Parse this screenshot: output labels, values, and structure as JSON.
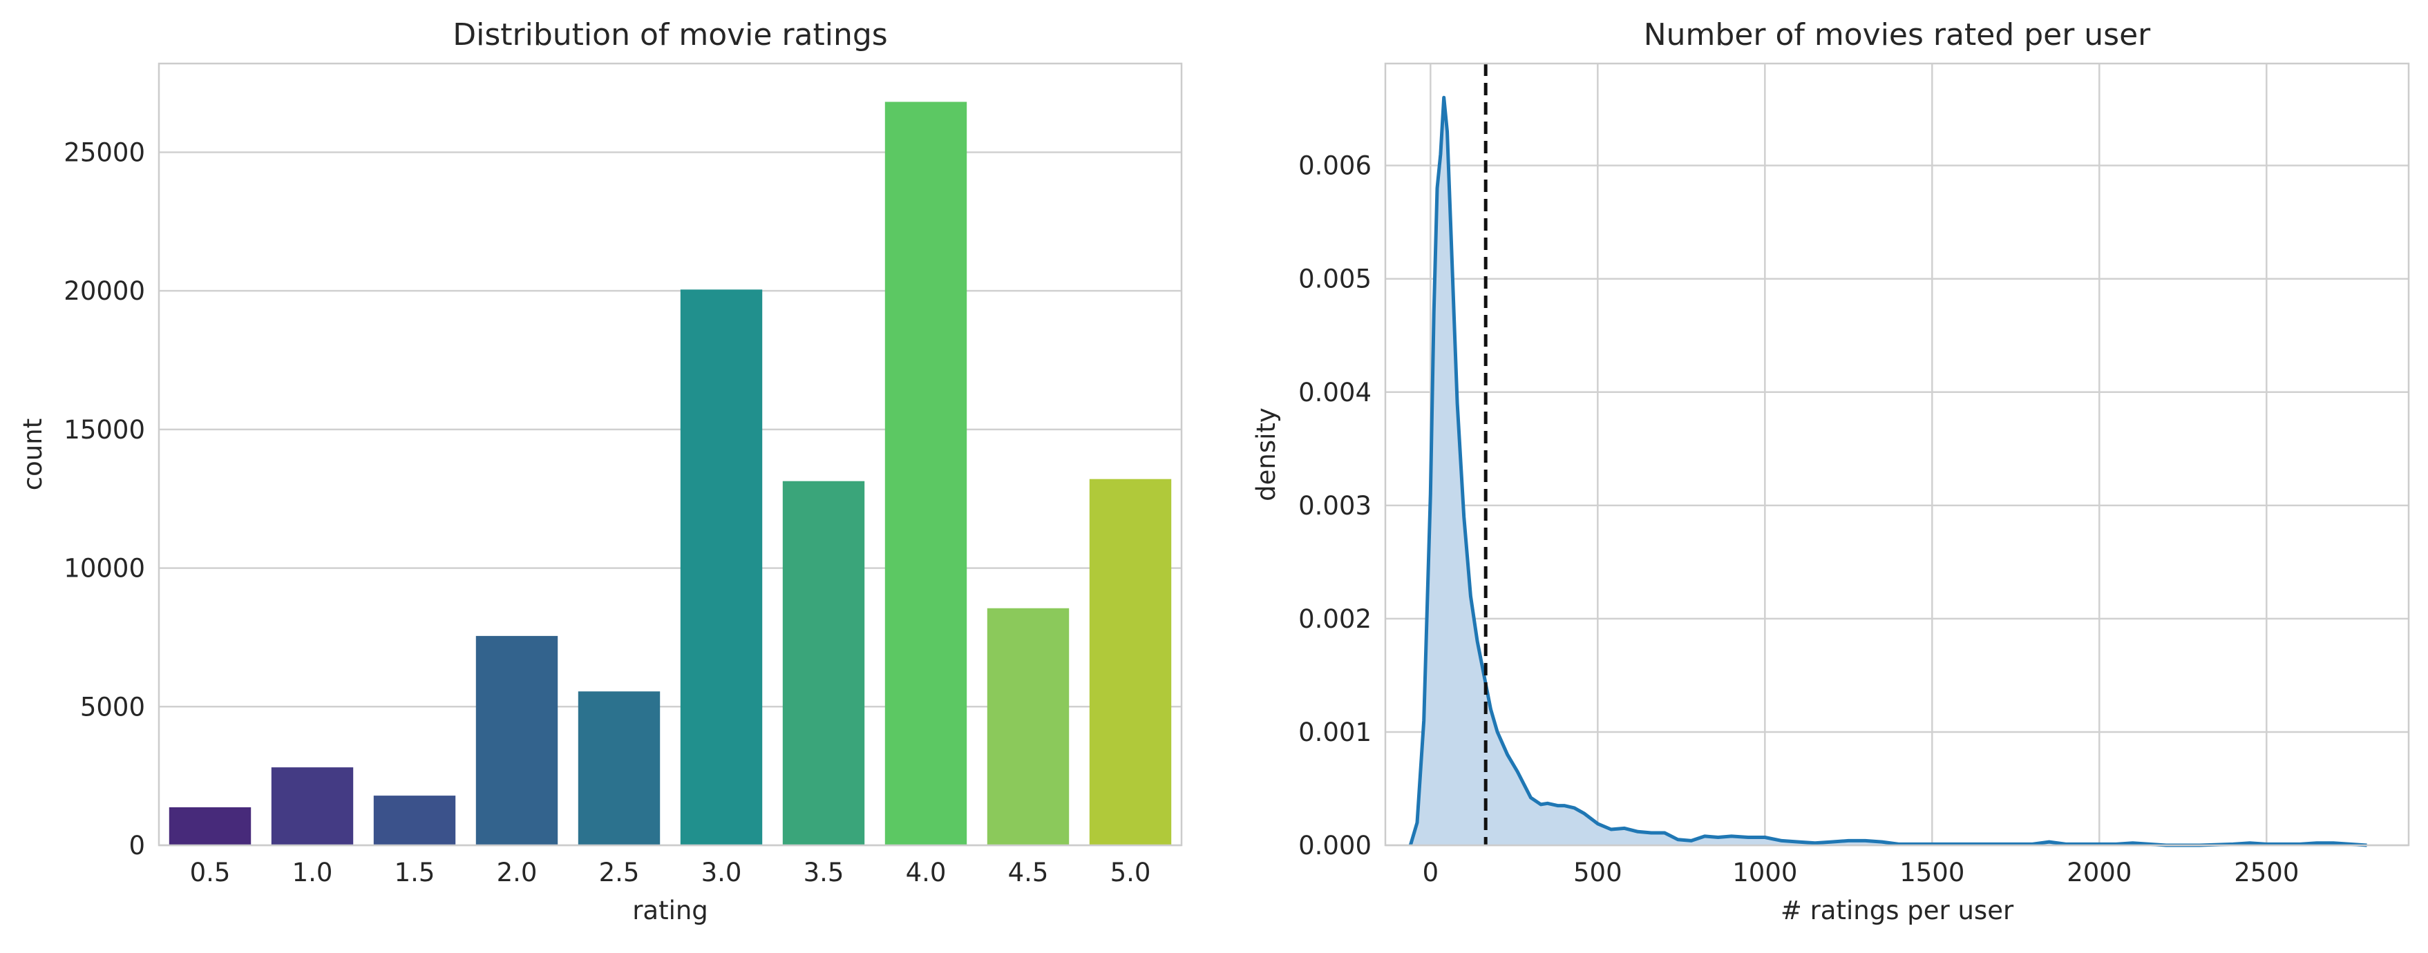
{
  "chart_data": [
    {
      "type": "bar",
      "title": "Distribution of movie ratings",
      "xlabel": "rating",
      "ylabel": "count",
      "categories": [
        "0.5",
        "1.0",
        "1.5",
        "2.0",
        "2.5",
        "3.0",
        "3.5",
        "4.0",
        "4.5",
        "5.0"
      ],
      "values": [
        1370,
        2811,
        1791,
        7551,
        5550,
        20047,
        13136,
        26818,
        8551,
        13211
      ],
      "colors": [
        "#472a7a",
        "#443b84",
        "#3b528b",
        "#33638d",
        "#2c728e",
        "#21908d",
        "#3aa57a",
        "#5cc863",
        "#8bc95b",
        "#b0c93a"
      ],
      "ylim": [
        0,
        28200
      ],
      "yticks": [
        0,
        5000,
        10000,
        15000,
        20000,
        25000
      ],
      "grid": "horizontal"
    },
    {
      "type": "area",
      "title": "Number of movies rated per user",
      "xlabel": "# ratings per user",
      "ylabel": "density",
      "xlim": [
        -135,
        2925
      ],
      "ylim": [
        0,
        0.0069
      ],
      "xticks": [
        0,
        500,
        1000,
        1500,
        2000,
        2500
      ],
      "yticks": [
        "0.000",
        "0.001",
        "0.002",
        "0.003",
        "0.004",
        "0.005",
        "0.006"
      ],
      "reference_line_x": 165,
      "line_color": "#1f77b4",
      "fill_color": "#c5d9ec",
      "grid": "both",
      "series": [
        {
          "x": [
            -60,
            -40,
            -20,
            0,
            10,
            20,
            30,
            40,
            50,
            60,
            70,
            80,
            100,
            120,
            140,
            160,
            180,
            200,
            230,
            260,
            300,
            330,
            350,
            380,
            400,
            430,
            460,
            500,
            540,
            580,
            620,
            660,
            700,
            740,
            780,
            820,
            860,
            900,
            950,
            1000,
            1050,
            1100,
            1150,
            1200,
            1250,
            1300,
            1350,
            1400,
            1450,
            1500,
            1600,
            1700,
            1800,
            1850,
            1900,
            1950,
            2000,
            2050,
            2100,
            2150,
            2200,
            2300,
            2400,
            2450,
            2500,
            2550,
            2600,
            2650,
            2700,
            2750,
            2800
          ],
          "y": [
            0,
            0.0002,
            0.0011,
            0.0031,
            0.0047,
            0.0058,
            0.0061,
            0.0066,
            0.0063,
            0.0055,
            0.0047,
            0.0039,
            0.0029,
            0.0022,
            0.0018,
            0.0015,
            0.0012,
            0.001,
            0.0008,
            0.00065,
            0.00042,
            0.00036,
            0.00037,
            0.00035,
            0.00035,
            0.00033,
            0.00028,
            0.00019,
            0.00014,
            0.00015,
            0.00012,
            0.00011,
            0.00011,
            5e-05,
            4e-05,
            8e-05,
            7e-05,
            8e-05,
            7e-05,
            7e-05,
            4e-05,
            3e-05,
            2e-05,
            3e-05,
            4e-05,
            4e-05,
            3e-05,
            1e-05,
            1e-05,
            1e-05,
            1e-05,
            1e-05,
            1e-05,
            3e-05,
            1e-05,
            1e-05,
            1e-05,
            1e-05,
            2e-05,
            1e-05,
            0,
            0,
            1e-05,
            2e-05,
            1e-05,
            1e-05,
            1e-05,
            2e-05,
            2e-05,
            1e-05,
            0
          ]
        }
      ]
    }
  ]
}
